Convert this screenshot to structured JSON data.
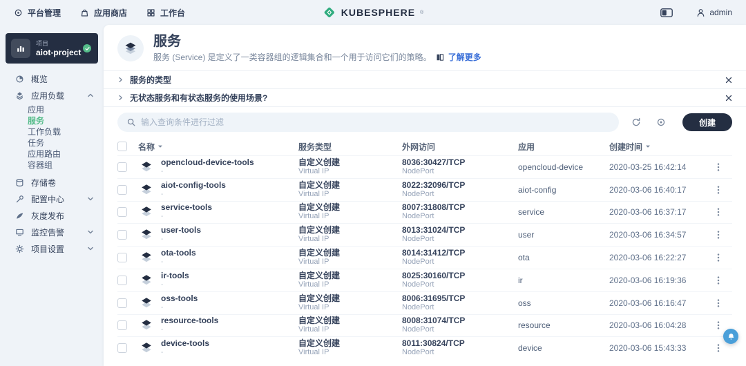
{
  "topbar": {
    "nav": [
      {
        "label": "平台管理"
      },
      {
        "label": "应用商店"
      },
      {
        "label": "工作台"
      }
    ],
    "logo_text": "KUBESPHERE",
    "logo_mark": "®",
    "user_name": "admin"
  },
  "sidebar": {
    "project_label": "项目",
    "project_name": "aiot-project",
    "items": [
      {
        "label": "概览",
        "icon": "overview-icon",
        "kind": "item"
      },
      {
        "label": "应用负载",
        "icon": "workload-icon",
        "kind": "group",
        "expanded": true
      },
      {
        "label": "应用",
        "kind": "sub"
      },
      {
        "label": "服务",
        "kind": "sub",
        "active": true
      },
      {
        "label": "工作负载",
        "kind": "sub"
      },
      {
        "label": "任务",
        "kind": "sub"
      },
      {
        "label": "应用路由",
        "kind": "sub"
      },
      {
        "label": "容器组",
        "kind": "sub",
        "last_sub": true
      },
      {
        "label": "存储卷",
        "icon": "storage-icon",
        "kind": "item"
      },
      {
        "label": "配置中心",
        "icon": "config-icon",
        "kind": "group",
        "expanded": false
      },
      {
        "label": "灰度发布",
        "icon": "release-icon",
        "kind": "item"
      },
      {
        "label": "监控告警",
        "icon": "monitor-icon",
        "kind": "group",
        "expanded": false
      },
      {
        "label": "项目设置",
        "icon": "settings-icon",
        "kind": "group",
        "expanded": false
      }
    ]
  },
  "page": {
    "title": "服务",
    "description": "服务 (Service) 是定义了一类容器组的逻辑集合和一个用于访问它们的策略。",
    "learn_more": "了解更多"
  },
  "tips": [
    {
      "title": "服务的类型"
    },
    {
      "title": "无状态服务和有状态服务的使用场景?"
    }
  ],
  "toolbar": {
    "search_placeholder": "输入查询条件进行过滤",
    "create_label": "创建"
  },
  "table": {
    "columns": {
      "name": "名称",
      "type": "服务类型",
      "access": "外网访问",
      "app": "应用",
      "created": "创建时间"
    },
    "rows": [
      {
        "name": "opencloud-device-tools",
        "desc": "-",
        "type": "自定义创建",
        "type_sub": "Virtual IP",
        "access": "8036:30427/TCP",
        "access_sub": "NodePort",
        "app": "opencloud-device",
        "created": "2020-03-25 16:42:14"
      },
      {
        "name": "aiot-config-tools",
        "desc": "-",
        "type": "自定义创建",
        "type_sub": "Virtual IP",
        "access": "8022:32096/TCP",
        "access_sub": "NodePort",
        "app": "aiot-config",
        "created": "2020-03-06 16:40:17"
      },
      {
        "name": "service-tools",
        "desc": "-",
        "type": "自定义创建",
        "type_sub": "Virtual IP",
        "access": "8007:31808/TCP",
        "access_sub": "NodePort",
        "app": "service",
        "created": "2020-03-06 16:37:17"
      },
      {
        "name": "user-tools",
        "desc": "-",
        "type": "自定义创建",
        "type_sub": "Virtual IP",
        "access": "8013:31024/TCP",
        "access_sub": "NodePort",
        "app": "user",
        "created": "2020-03-06 16:34:57"
      },
      {
        "name": "ota-tools",
        "desc": "-",
        "type": "自定义创建",
        "type_sub": "Virtual IP",
        "access": "8014:31412/TCP",
        "access_sub": "NodePort",
        "app": "ota",
        "created": "2020-03-06 16:22:27"
      },
      {
        "name": "ir-tools",
        "desc": "-",
        "type": "自定义创建",
        "type_sub": "Virtual IP",
        "access": "8025:30160/TCP",
        "access_sub": "NodePort",
        "app": "ir",
        "created": "2020-03-06 16:19:36"
      },
      {
        "name": "oss-tools",
        "desc": "-",
        "type": "自定义创建",
        "type_sub": "Virtual IP",
        "access": "8006:31695/TCP",
        "access_sub": "NodePort",
        "app": "oss",
        "created": "2020-03-06 16:16:47"
      },
      {
        "name": "resource-tools",
        "desc": "-",
        "type": "自定义创建",
        "type_sub": "Virtual IP",
        "access": "8008:31074/TCP",
        "access_sub": "NodePort",
        "app": "resource",
        "created": "2020-03-06 16:04:28"
      },
      {
        "name": "device-tools",
        "desc": "-",
        "type": "自定义创建",
        "type_sub": "Virtual IP",
        "access": "8011:30824/TCP",
        "access_sub": "NodePort",
        "app": "device",
        "created": "2020-03-06 15:43:33"
      }
    ]
  },
  "colors": {
    "accent_green": "#55bc8a",
    "dark_navy": "#242e42",
    "link_blue": "#3a6fd8",
    "fab_blue": "#4a9fd9",
    "page_bg": "#eff3f8"
  }
}
